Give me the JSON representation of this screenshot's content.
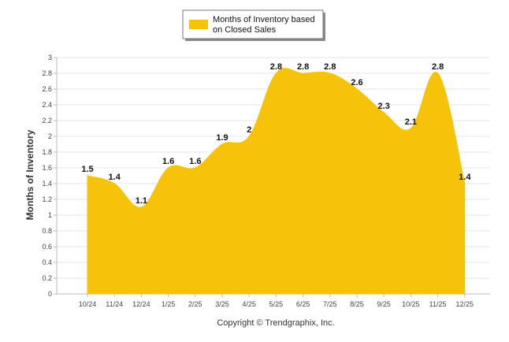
{
  "chart_data": {
    "type": "area",
    "categories": [
      "10/24",
      "11/24",
      "12/24",
      "1/25",
      "2/25",
      "3/25",
      "4/25",
      "5/25",
      "6/25",
      "7/25",
      "8/25",
      "9/25",
      "10/25",
      "11/25",
      "12/25"
    ],
    "series": [
      {
        "name": "Months of Inventory based on Closed Sales",
        "values": [
          1.5,
          1.4,
          1.1,
          1.6,
          1.6,
          1.9,
          2,
          2.8,
          2.8,
          2.8,
          2.6,
          2.3,
          2.1,
          2.8,
          1.4
        ],
        "labels": [
          "1.5",
          "1.4",
          "1.1",
          "1.6",
          "1.6",
          "1.9",
          "2",
          "2.8",
          "2.8",
          "2.8",
          "2.6",
          "2.3",
          "2.1",
          "2.8",
          "1.4"
        ],
        "color": "#F7C20A"
      }
    ],
    "ylabel": "Months of Inventory",
    "xlabel": "",
    "ylim": [
      0,
      3
    ],
    "yticks": [
      "0",
      "0.2",
      "0.4",
      "0.6",
      "0.8",
      "1",
      "1.2",
      "1.4",
      "1.6",
      "1.8",
      "2",
      "2.2",
      "2.4",
      "2.6",
      "2.8",
      "3"
    ],
    "grid": true,
    "legend": {
      "placement": "top-center",
      "line1": "Months of Inventory based",
      "line2": "on Closed Sales"
    },
    "credit": "Copyright © Trendgraphix, Inc."
  }
}
